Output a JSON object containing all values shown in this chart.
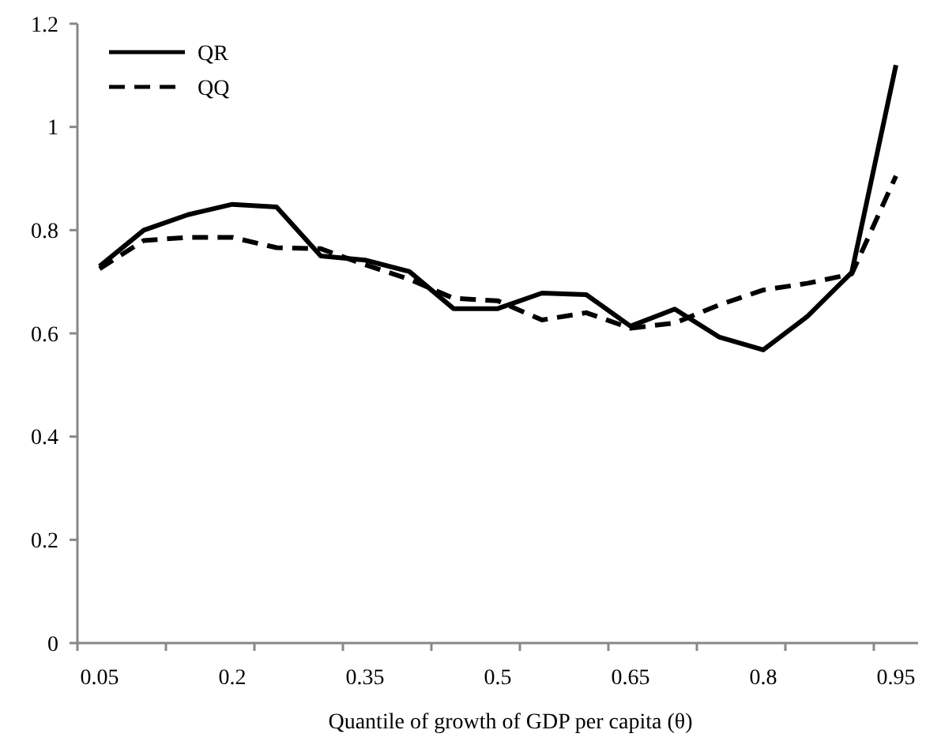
{
  "chart_data": {
    "type": "line",
    "xlabel": "Quantile of growth of GDP per capita (θ)",
    "categories": [
      "0.05",
      null,
      null,
      "0.2",
      null,
      null,
      "0.35",
      null,
      null,
      "0.5",
      null,
      null,
      "0.65",
      null,
      null,
      "0.8",
      null,
      null,
      "0.95"
    ],
    "series": [
      {
        "name": "QR",
        "color": "#000000",
        "line_style": "solid",
        "values": [
          0.73,
          0.8,
          0.83,
          0.85,
          0.845,
          0.75,
          0.742,
          0.72,
          0.648,
          0.648,
          0.678,
          0.675,
          0.614,
          0.647,
          0.593,
          0.568,
          0.633,
          0.718,
          1.12
        ]
      },
      {
        "name": "QQ",
        "color": "#000000",
        "line_style": "dashed",
        "values": [
          0.725,
          0.78,
          0.786,
          0.786,
          0.766,
          0.764,
          0.733,
          0.705,
          0.668,
          0.663,
          0.626,
          0.64,
          0.61,
          0.62,
          0.655,
          0.684,
          0.697,
          0.715,
          0.905
        ]
      }
    ],
    "ylim": [
      0,
      1.2
    ],
    "yticks": [
      0,
      0.2,
      0.4,
      0.6,
      0.8,
      1,
      1.2
    ],
    "grid": false,
    "legend": "top left",
    "marker": "none"
  }
}
